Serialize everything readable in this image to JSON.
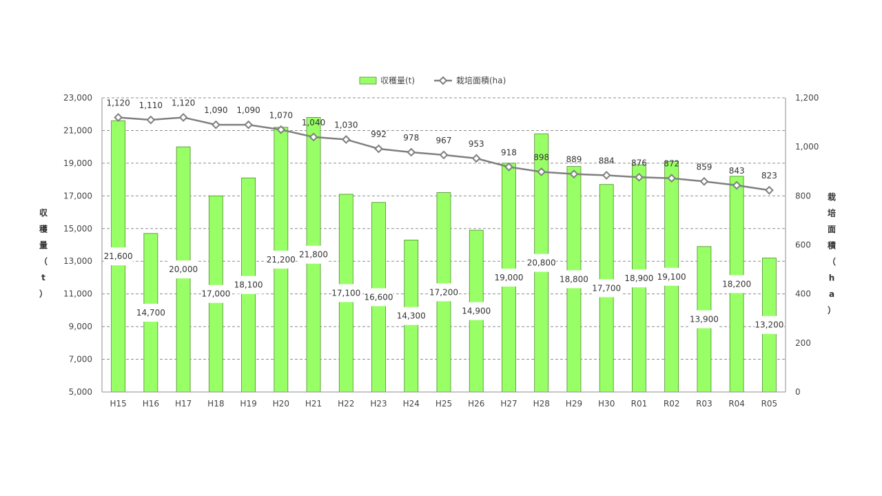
{
  "chart_data": {
    "type": "bar",
    "categories": [
      "H15",
      "H16",
      "H17",
      "H18",
      "H19",
      "H20",
      "H21",
      "H22",
      "H23",
      "H24",
      "H25",
      "H26",
      "H27",
      "H28",
      "H29",
      "H30",
      "R01",
      "R02",
      "R03",
      "R04",
      "R05"
    ],
    "series": [
      {
        "name": "収穫量(t)",
        "type": "bar",
        "axis": "left",
        "color": "#99ff66",
        "values": [
          21600,
          14700,
          20000,
          17000,
          18100,
          21200,
          21800,
          17100,
          16600,
          14300,
          17200,
          14900,
          19000,
          20800,
          18800,
          17700,
          18900,
          19100,
          13900,
          18200,
          13200
        ],
        "labels": [
          "21,600",
          "14,700",
          "20,000",
          "17,000",
          "18,100",
          "21,200",
          "21,800",
          "17,100",
          "16,600",
          "14,300",
          "17,200",
          "14,900",
          "19,000",
          "20,800",
          "18,800",
          "17,700",
          "18,900",
          "19,100",
          "13,900",
          "18,200",
          "13,200"
        ]
      },
      {
        "name": "栽培面積(ha)",
        "type": "line",
        "axis": "right",
        "color": "#7f7f7f",
        "marker": "diamond",
        "values": [
          1120,
          1110,
          1120,
          1090,
          1090,
          1070,
          1040,
          1030,
          992,
          978,
          967,
          953,
          918,
          898,
          889,
          884,
          876,
          872,
          859,
          843,
          823
        ],
        "labels": [
          "1,120",
          "1,110",
          "1,120",
          "1,090",
          "1,090",
          "1,070",
          "1,040",
          "1,030",
          "992",
          "978",
          "967",
          "953",
          "918",
          "898",
          "889",
          "884",
          "876",
          "872",
          "859",
          "843",
          "823"
        ]
      }
    ],
    "ylabel": "収穫量（t）",
    "y2label": "栽培面積（ha）",
    "ylim": [
      5000,
      23000
    ],
    "y2lim": [
      0,
      1200
    ],
    "yticks": [
      "23,000",
      "21,000",
      "19,000",
      "17,000",
      "15,000",
      "13,000",
      "11,000",
      "9,000",
      "7,000",
      "5,000"
    ],
    "y2ticks": [
      "1,200",
      "1,000",
      "800",
      "600",
      "400",
      "200",
      "0"
    ],
    "grid": true,
    "legend_position": "top"
  }
}
